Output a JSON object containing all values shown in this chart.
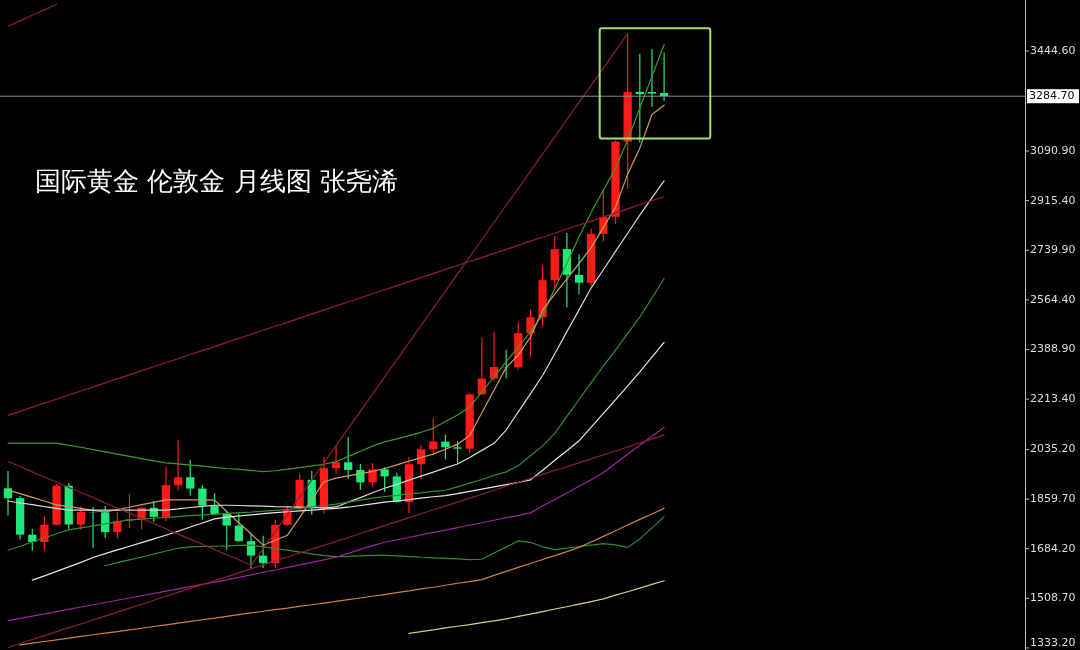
{
  "chart_data": {
    "type": "candlestick",
    "title": "国际黄金 伦敦金 月线图 张尧浠",
    "categories": [
      null,
      null,
      null,
      null,
      null,
      null,
      null,
      null,
      null,
      null,
      null,
      null,
      null,
      null,
      null,
      null,
      null,
      null,
      null,
      null,
      null,
      null,
      null,
      null,
      null,
      null,
      null,
      null,
      null,
      null,
      null,
      null,
      null,
      null,
      null,
      null,
      null,
      null,
      null,
      null,
      null,
      null,
      null,
      null,
      null,
      null,
      null,
      null,
      null,
      null,
      null,
      null,
      null,
      null,
      null
    ],
    "ohlc": [
      [
        1898,
        1959,
        1802,
        1863
      ],
      [
        1863,
        1871,
        1717,
        1734
      ],
      [
        1734,
        1755,
        1677,
        1708
      ],
      [
        1708,
        1798,
        1678,
        1769
      ],
      [
        1769,
        1913,
        1766,
        1907
      ],
      [
        1907,
        1917,
        1751,
        1770
      ],
      [
        1770,
        1834,
        1751,
        1814
      ],
      [
        1814,
        1832,
        1688,
        1813
      ],
      [
        1813,
        1835,
        1722,
        1743
      ],
      [
        1743,
        1814,
        1721,
        1783
      ],
      [
        1783,
        1877,
        1758,
        1788
      ],
      [
        1788,
        1831,
        1753,
        1829
      ],
      [
        1829,
        1853,
        1780,
        1797
      ],
      [
        1797,
        1974,
        1781,
        1909
      ],
      [
        1909,
        2070,
        1890,
        1937
      ],
      [
        1937,
        1998,
        1872,
        1897
      ],
      [
        1897,
        1910,
        1787,
        1837
      ],
      [
        1837,
        1880,
        1805,
        1807
      ],
      [
        1807,
        1814,
        1681,
        1766
      ],
      [
        1766,
        1808,
        1709,
        1711
      ],
      [
        1711,
        1735,
        1615,
        1660
      ],
      [
        1660,
        1730,
        1617,
        1633
      ],
      [
        1633,
        1786,
        1617,
        1769
      ],
      [
        1769,
        1833,
        1765,
        1824
      ],
      [
        1824,
        1949,
        1823,
        1928
      ],
      [
        1928,
        1959,
        1804,
        1827
      ],
      [
        1827,
        2009,
        1810,
        1969
      ],
      [
        1969,
        2048,
        1949,
        1990
      ],
      [
        1990,
        2079,
        1932,
        1963
      ],
      [
        1963,
        1984,
        1893,
        1919
      ],
      [
        1919,
        1987,
        1903,
        1965
      ],
      [
        1965,
        1972,
        1885,
        1940
      ],
      [
        1940,
        1953,
        1848,
        1849
      ],
      [
        1849,
        2009,
        1810,
        1983
      ],
      [
        1983,
        2052,
        1931,
        2036
      ],
      [
        2036,
        2147,
        2017,
        2063
      ],
      [
        2063,
        2088,
        2001,
        2043
      ],
      [
        2043,
        2065,
        1984,
        2038
      ],
      [
        2038,
        2236,
        2024,
        2230
      ],
      [
        2230,
        2431,
        2228,
        2286
      ],
      [
        2286,
        2450,
        2277,
        2327
      ],
      [
        2327,
        2388,
        2286,
        2326
      ],
      [
        2326,
        2484,
        2319,
        2447
      ],
      [
        2447,
        2531,
        2364,
        2503
      ],
      [
        2503,
        2685,
        2471,
        2634
      ],
      [
        2634,
        2790,
        2603,
        2744
      ],
      [
        2744,
        2801,
        2537,
        2653
      ],
      [
        2653,
        2726,
        2583,
        2625
      ],
      [
        2625,
        2817,
        2614,
        2798
      ],
      [
        2798,
        2956,
        2772,
        2858
      ],
      [
        2858,
        3128,
        2833,
        3124
      ],
      [
        3124,
        3500,
        2957,
        3300
      ],
      [
        3300,
        3435,
        3121,
        3292
      ],
      [
        3300,
        3452,
        3247,
        3294
      ],
      [
        3296,
        3439,
        3268,
        3285
      ]
    ],
    "colors": [
      "#1ee87a",
      "#1ee87a",
      "#1ee87a",
      "#ff1a1a",
      "#ff1a1a",
      "#1ee87a",
      "#ff1a1a",
      "#1ee87a",
      "#1ee87a",
      "#ff1a1a",
      "#ff1a1a",
      "#ff1a1a",
      "#1ee87a",
      "#ff1a1a",
      "#ff1a1a",
      "#1ee87a",
      "#1ee87a",
      "#1ee87a",
      "#1ee87a",
      "#1ee87a",
      "#1ee87a",
      "#1ee87a",
      "#ff1a1a",
      "#ff1a1a",
      "#ff1a1a",
      "#1ee87a",
      "#ff1a1a",
      "#ff1a1a",
      "#1ee87a",
      "#1ee87a",
      "#ff1a1a",
      "#1ee87a",
      "#1ee87a",
      "#ff1a1a",
      "#ff1a1a",
      "#ff1a1a",
      "#1ee87a",
      "#1ee87a",
      "#ff1a1a",
      "#ff1a1a",
      "#ff1a1a",
      "#1ee87a",
      "#ff1a1a",
      "#ff1a1a",
      "#ff1a1a",
      "#ff1a1a",
      "#1ee87a",
      "#1ee87a",
      "#ff1a1a",
      "#ff1a1a",
      "#ff1a1a",
      "#ff1a1a",
      "#1ee87a",
      "#1ee87a",
      "#1ee87a"
    ],
    "ylim": [
      1326,
      3625
    ],
    "yticks": [
      {
        "value": 3444.6,
        "label": "3444.60"
      },
      {
        "value": 3090.9,
        "label": "3090.90"
      },
      {
        "value": 2915.4,
        "label": "2915.40"
      },
      {
        "value": 2739.9,
        "label": "2739.90"
      },
      {
        "value": 2564.4,
        "label": "2564.40"
      },
      {
        "value": 2388.9,
        "label": "2388.90"
      },
      {
        "value": 2213.4,
        "label": "2213.40"
      },
      {
        "value": 2035.2,
        "label": "2035.20"
      },
      {
        "value": 1859.7,
        "label": "1859.70"
      },
      {
        "value": 1684.2,
        "label": "1684.20"
      },
      {
        "value": 1508.7,
        "label": "1508.70"
      },
      {
        "value": 1333.2,
        "label": "1333.20"
      }
    ],
    "tick_labels": "y",
    "ref_lines": [
      {
        "axis": "y",
        "value": 3284.7,
        "label": "3284.70",
        "color": "#8c8c8c"
      }
    ],
    "series": [
      {
        "type": "line",
        "color": "#3c9a2c",
        "values": [
          2058,
          2058,
          2058,
          2058,
          2058,
          2050,
          2043,
          2035,
          2027,
          2019,
          2011,
          2003,
          1995,
          1988,
          1984,
          1980,
          1976,
          1972,
          1968,
          1965,
          1961,
          1957,
          1960,
          1966,
          1971,
          1977,
          1983,
          1992,
          2010,
          2029,
          2047,
          2062,
          2073,
          2084,
          2096,
          2110,
          2134,
          2157,
          2186,
          2239,
          2292,
          2345,
          2398,
          2451,
          2512,
          2604,
          2695,
          2787,
          2874,
          2952,
          3030,
          3130,
          3242,
          3355,
          3467
        ]
      },
      {
        "type": "line",
        "color": "#c8a060",
        "values": [
          1892,
          1879,
          1866,
          1853,
          1839,
          1833,
          1827,
          1820,
          1814,
          1823,
          1831,
          1840,
          1848,
          1857,
          1857,
          1857,
          1857,
          1856,
          1816,
          1776,
          1737,
          1697,
          1714,
          1732,
          1794,
          1858,
          1921,
          1934,
          1942,
          1950,
          1958,
          1968,
          1981,
          1994,
          2007,
          2019,
          2036,
          2054,
          2085,
          2165,
          2245,
          2325,
          2369,
          2433,
          2528,
          2585,
          2639,
          2693,
          2749,
          2821,
          2892,
          3009,
          3101,
          3220,
          3253
        ]
      },
      {
        "type": "line",
        "color": "#d8d8d8",
        "values": [
          1853,
          1846,
          1840,
          1833,
          1827,
          1821,
          1821,
          1821,
          1821,
          1821,
          1821,
          1821,
          1821,
          1821,
          1825,
          1830,
          1834,
          1838,
          1838,
          1837,
          1836,
          1835,
          1833,
          1832,
          1831,
          1830,
          1829,
          1832,
          1849,
          1865,
          1882,
          1898,
          1912,
          1927,
          1941,
          1955,
          1970,
          1984,
          2007,
          2032,
          2057,
          2104,
          2168,
          2232,
          2297,
          2374,
          2452,
          2529,
          2607,
          2671,
          2736,
          2800,
          2864,
          2925,
          2985
        ]
      },
      {
        "type": "line",
        "color": "#e8e8e8",
        "values": [
          null,
          null,
          1573,
          1588,
          1604,
          1620,
          1636,
          1653,
          1667,
          1680,
          1693,
          1706,
          1719,
          1732,
          1746,
          1761,
          1775,
          1790,
          1796,
          1800,
          1804,
          1808,
          1812,
          1815,
          1818,
          1821,
          1824,
          1827,
          1831,
          1837,
          1843,
          1849,
          1853,
          1858,
          1863,
          1868,
          1872,
          1879,
          1887,
          1895,
          1903,
          1911,
          1919,
          1928,
          1962,
          1997,
          2031,
          2066,
          2114,
          2163,
          2211,
          2260,
          2310,
          2362,
          2414
        ]
      },
      {
        "type": "line",
        "color": "#2f8f2f",
        "values": [
          1679,
          1693,
          1708,
          1723,
          1737,
          1751,
          1758,
          1765,
          1772,
          1779,
          1786,
          1789,
          1792,
          1795,
          1798,
          1801,
          1804,
          1806,
          1809,
          1812,
          1814,
          1817,
          1820,
          1823,
          1827,
          1832,
          1837,
          1842,
          1849,
          1856,
          1863,
          1869,
          1873,
          1878,
          1882,
          1887,
          1891,
          1903,
          1916,
          1929,
          1943,
          1956,
          1978,
          2013,
          2048,
          2092,
          2152,
          2212,
          2272,
          2330,
          2387,
          2445,
          2503,
          2571,
          2640
        ]
      },
      {
        "type": "line",
        "color": "#2f8f2f",
        "values": [
          null,
          null,
          null,
          null,
          null,
          null,
          null,
          null,
          1624,
          1635,
          1645,
          1655,
          1665,
          1676,
          1686,
          1691,
          1692,
          1693,
          1694,
          1696,
          1697,
          1691,
          1685,
          1679,
          1672,
          1666,
          1660,
          1656,
          1657,
          1659,
          1661,
          1661,
          1659,
          1657,
          1654,
          1652,
          1650,
          1648,
          1646,
          1647,
          1669,
          1690,
          1712,
          1707,
          1691,
          1681,
          1686,
          1692,
          1697,
          1702,
          1698,
          1689,
          1719,
          1758,
          1797
        ]
      },
      {
        "type": "line",
        "color": "#a020a0",
        "values": [
          1430,
          1438,
          1446,
          1454,
          1462,
          1470,
          1478,
          1486,
          1494,
          1502,
          1510,
          1518,
          1526,
          1534,
          1542,
          1550,
          1558,
          1566,
          1574,
          1583,
          1592,
          1601,
          1609,
          1618,
          1627,
          1636,
          1645,
          1654,
          1668,
          1682,
          1695,
          1707,
          1716,
          1724,
          1733,
          1742,
          1750,
          1759,
          1768,
          1776,
          1785,
          1794,
          1802,
          1811,
          1835,
          1858,
          1881,
          1905,
          1928,
          1954,
          1986,
          2018,
          2050,
          2082,
          2114
        ]
      },
      {
        "type": "line",
        "color": "#d08040",
        "values": [
          null,
          1344,
          1350,
          1356,
          1362,
          1368,
          1374,
          1380,
          1386,
          1391,
          1397,
          1403,
          1409,
          1415,
          1421,
          1427,
          1433,
          1439,
          1445,
          1451,
          1457,
          1463,
          1469,
          1474,
          1480,
          1486,
          1492,
          1498,
          1504,
          1510,
          1516,
          1522,
          1529,
          1535,
          1542,
          1548,
          1555,
          1562,
          1568,
          1575,
          1590,
          1604,
          1618,
          1632,
          1646,
          1660,
          1674,
          1689,
          1708,
          1728,
          1748,
          1768,
          1788,
          1807,
          1827
        ]
      },
      {
        "type": "line",
        "color": "#d8d080",
        "values": [
          null,
          null,
          null,
          null,
          null,
          null,
          null,
          null,
          null,
          null,
          null,
          null,
          null,
          null,
          null,
          null,
          null,
          null,
          null,
          null,
          null,
          null,
          null,
          null,
          null,
          null,
          null,
          null,
          null,
          null,
          null,
          null,
          null,
          1385,
          1391,
          1397,
          1404,
          1410,
          1416,
          1423,
          1429,
          1436,
          1445,
          1453,
          1462,
          1471,
          1479,
          1488,
          1497,
          1507,
          1520,
          1532,
          1545,
          1558,
          1571
        ]
      },
      {
        "type": "line",
        "color": "#8b2035",
        "values": [
          2156,
          2170,
          2185,
          2199,
          2213,
          2228,
          2242,
          2256,
          2271,
          2285,
          2299,
          2314,
          2328,
          2342,
          2356,
          2371,
          2385,
          2399,
          2414,
          2428,
          2442,
          2457,
          2471,
          2485,
          2500,
          2514,
          2528,
          2543,
          2557,
          2571,
          2586,
          2600,
          2614,
          2629,
          2643,
          2657,
          2672,
          2686,
          2700,
          2714,
          2729,
          2743,
          2757,
          2772,
          2786,
          2800,
          2815,
          2829,
          2843,
          2858,
          2872,
          2886,
          2901,
          2915,
          2929
        ]
      },
      {
        "type": "line",
        "color": "#8b2035",
        "values": [
          1335,
          1349,
          1363,
          1377,
          1391,
          1405,
          1418,
          1432,
          1446,
          1460,
          1474,
          1488,
          1502,
          1516,
          1530,
          1544,
          1557,
          1571,
          1585,
          1599,
          1613,
          1627,
          1641,
          1655,
          1669,
          1683,
          1696,
          1710,
          1724,
          1738,
          1752,
          1766,
          1780,
          1794,
          1808,
          1822,
          1835,
          1849,
          1863,
          1877,
          1891,
          1905,
          1919,
          1933,
          1947,
          1961,
          1974,
          1988,
          2002,
          2016,
          2030,
          2044,
          2058,
          2072,
          2086
        ]
      },
      {
        "type": "line",
        "color": "#8b2035",
        "values": [
          null,
          null,
          null,
          null,
          null,
          null,
          null,
          null,
          null,
          null,
          null,
          null,
          null,
          null,
          null,
          null,
          null,
          null,
          null,
          null,
          1624,
          1685,
          1745,
          1806,
          1867,
          1928,
          1988,
          2049,
          2110,
          2170,
          2231,
          2292,
          2352,
          2413,
          2474,
          2534,
          2595,
          2656,
          2717,
          2777,
          2838,
          2899,
          2959,
          3020,
          3081,
          3141,
          3202,
          3263,
          3323,
          3384,
          3445,
          3506,
          null,
          null,
          null
        ]
      },
      {
        "type": "line",
        "color": "#8b2035",
        "values": [
          1993,
          1975,
          1956,
          1938,
          1920,
          1901,
          1883,
          1865,
          1846,
          1828,
          1810,
          1791,
          1773,
          1755,
          1736,
          1718,
          1700,
          1681,
          1663,
          1645,
          1626,
          null,
          null,
          null,
          null,
          null,
          null,
          null,
          null,
          null,
          null,
          null,
          null,
          null,
          null,
          null,
          null,
          null,
          null,
          null,
          null,
          null,
          null,
          null,
          null,
          null,
          null,
          null,
          null,
          null,
          null,
          null,
          null,
          null,
          null
        ]
      },
      {
        "type": "line",
        "color": "#8b2035",
        "values": [
          3532,
          3551,
          3571,
          3590,
          3610,
          null,
          null,
          null,
          null,
          null,
          null,
          null,
          null,
          null,
          null,
          null,
          null,
          null,
          null,
          null,
          null,
          null,
          null,
          null,
          null,
          null,
          null,
          null,
          null,
          null,
          null,
          null,
          null,
          null,
          null,
          null,
          null,
          null,
          null,
          null,
          null,
          null,
          null,
          null,
          null,
          null,
          null,
          null,
          null,
          null,
          null,
          null,
          null,
          null,
          null
        ]
      }
    ]
  }
}
